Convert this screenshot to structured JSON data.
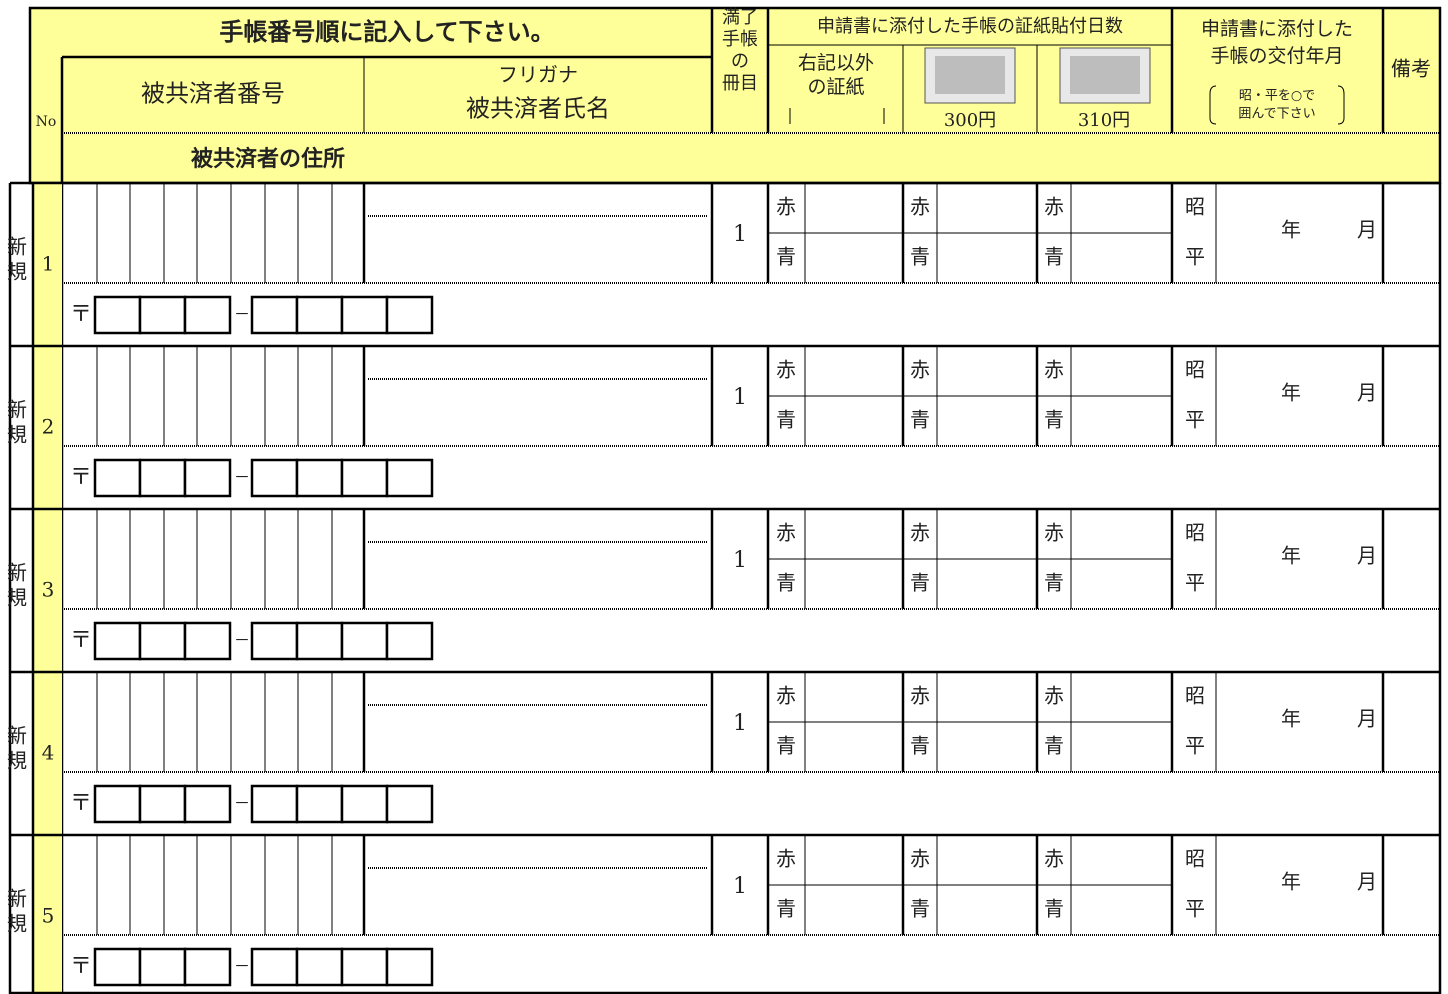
{
  "header": {
    "title": "手帳番号順に記入して下さい。",
    "no": "No",
    "member_number": "被共済者番号",
    "furigana": "フリガナ",
    "member_name": "被共済者氏名",
    "volume_lines": [
      "満了",
      "手帳",
      "の",
      "冊目"
    ],
    "stamp_days": "申請書に添付した手帳の証紙貼付日数",
    "other_stamp_lines": [
      "右記以外",
      "の証紙"
    ],
    "stamp_300": "300円",
    "stamp_310": "310円",
    "issue_lines": [
      "申請書に添付した",
      "手帳の交付年月"
    ],
    "issue_note_lines": [
      "昭・平を○で",
      "囲んで下さい"
    ],
    "remarks": "備考",
    "address": "被共済者の住所"
  },
  "rows": [
    {
      "status_lines": [
        "新",
        "規"
      ],
      "no": 1,
      "volume": 1,
      "stamps": [
        {
          "red": "赤",
          "blue": "青"
        },
        {
          "red": "赤",
          "blue": "青"
        },
        {
          "red": "赤",
          "blue": "青"
        }
      ],
      "era": [
        "昭",
        "平"
      ],
      "year": "年",
      "month": "月",
      "postal_mark": "〒",
      "postal_dash": "－"
    },
    {
      "status_lines": [
        "新",
        "規"
      ],
      "no": 2,
      "volume": 1,
      "stamps": [
        {
          "red": "赤",
          "blue": "青"
        },
        {
          "red": "赤",
          "blue": "青"
        },
        {
          "red": "赤",
          "blue": "青"
        }
      ],
      "era": [
        "昭",
        "平"
      ],
      "year": "年",
      "month": "月",
      "postal_mark": "〒",
      "postal_dash": "－"
    },
    {
      "status_lines": [
        "新",
        "規"
      ],
      "no": 3,
      "volume": 1,
      "stamps": [
        {
          "red": "赤",
          "blue": "青"
        },
        {
          "red": "赤",
          "blue": "青"
        },
        {
          "red": "赤",
          "blue": "青"
        }
      ],
      "era": [
        "昭",
        "平"
      ],
      "year": "年",
      "month": "月",
      "postal_mark": "〒",
      "postal_dash": "－"
    },
    {
      "status_lines": [
        "新",
        "規"
      ],
      "no": 4,
      "volume": 1,
      "stamps": [
        {
          "red": "赤",
          "blue": "青"
        },
        {
          "red": "赤",
          "blue": "青"
        },
        {
          "red": "赤",
          "blue": "青"
        }
      ],
      "era": [
        "昭",
        "平"
      ],
      "year": "年",
      "month": "月",
      "postal_mark": "〒",
      "postal_dash": "－"
    },
    {
      "status_lines": [
        "新",
        "規"
      ],
      "no": 5,
      "volume": 1,
      "stamps": [
        {
          "red": "赤",
          "blue": "青"
        },
        {
          "red": "赤",
          "blue": "青"
        },
        {
          "red": "赤",
          "blue": "青"
        }
      ],
      "era": [
        "昭",
        "平"
      ],
      "year": "年",
      "month": "月",
      "postal_mark": "〒",
      "postal_dash": "－"
    }
  ]
}
